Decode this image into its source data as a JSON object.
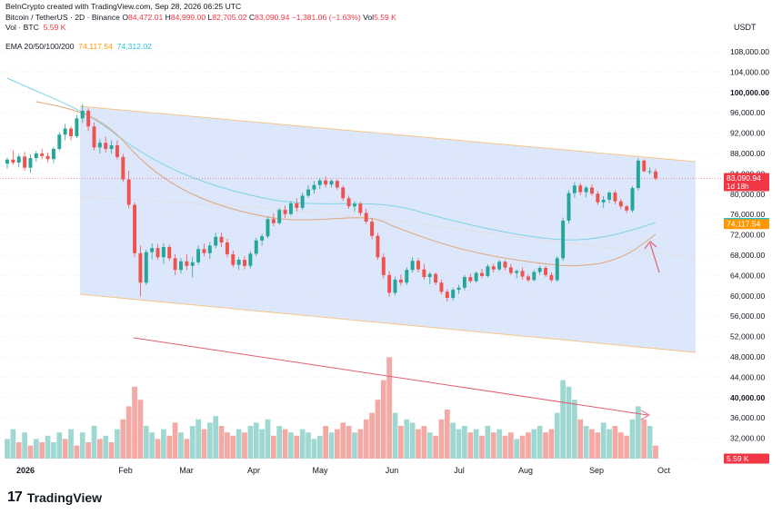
{
  "header": {
    "line1": "BeInCrypto created with TradingView.com, Sep 28, 2026 06:25 UTC",
    "symbol": "Bitcoin / TetherUS · 2D · Binance",
    "open_label": "O",
    "open": "84,472.01",
    "high_label": "H",
    "high": "84,999.00",
    "low_label": "L",
    "low": "82,705.02",
    "close_label": "C",
    "close": "83,090.94",
    "change": "−1,381.06 (−1.63%)",
    "vol_label": "Vol",
    "vol": "5.59 K",
    "vol_btc_label": "Vol · BTC",
    "vol_btc": "5.59 K",
    "ema_label": "EMA 20/50/100/200",
    "ema1": "74,117.54",
    "ema2": "74,312.02"
  },
  "axis": {
    "currency": "USDT"
  },
  "brand": "TradingView",
  "colors": {
    "up": "#26a69a",
    "down": "#ef5350",
    "channel_fill": "#dbe6fb",
    "channel_edge": "#f5c58a",
    "ema_orange": "#e0a77a",
    "ema_cyan": "#7fd3e8",
    "arrow": "#e06070"
  },
  "chart_data": {
    "type": "candlestick",
    "symbol": "Bitcoin / TetherUS",
    "interval": "2D",
    "exchange": "Binance",
    "y_axis_ticks": [
      108000,
      104000,
      100000,
      96000,
      92000,
      88000,
      84000,
      80000,
      76000,
      72000,
      68000,
      64000,
      60000,
      56000,
      52000,
      48000,
      44000,
      40000,
      36000,
      32000,
      28000
    ],
    "ylim": [
      25500,
      112000
    ],
    "x_axis_labels": [
      "2026",
      "Feb",
      "Mar",
      "Apr",
      "May",
      "Jun",
      "Jul",
      "Aug",
      "Sep",
      "Oct"
    ],
    "price_labels": [
      {
        "label": "83,090.94",
        "sublabel": "1d 18h",
        "value": 83090.94,
        "color": "#f23645"
      },
      {
        "label": "74,312.02",
        "value": 74312.02,
        "color": "#00bcd4"
      },
      {
        "label": "74,117.54",
        "value": 74117.54,
        "color": "#ff9800"
      },
      {
        "label": "5.59 K",
        "value": 28000,
        "color": "#f23645"
      }
    ],
    "candles": [
      [
        86000,
        87200,
        85000,
        86800
      ],
      [
        86800,
        88600,
        85800,
        86200
      ],
      [
        86200,
        87900,
        85300,
        87400
      ],
      [
        87400,
        88300,
        84600,
        85200
      ],
      [
        85200,
        87800,
        84200,
        87100
      ],
      [
        87100,
        88500,
        86400,
        88000
      ],
      [
        88000,
        88900,
        86900,
        87500
      ],
      [
        87500,
        88200,
        86300,
        86900
      ],
      [
        86900,
        89300,
        86100,
        88900
      ],
      [
        88900,
        92200,
        88500,
        91700
      ],
      [
        91700,
        93800,
        90600,
        92900
      ],
      [
        92900,
        93300,
        90600,
        91400
      ],
      [
        91400,
        95600,
        91000,
        94900
      ],
      [
        94900,
        97700,
        94000,
        96400
      ],
      [
        96400,
        96900,
        92400,
        93300
      ],
      [
        93300,
        94100,
        88600,
        89200
      ],
      [
        89200,
        90800,
        88000,
        90100
      ],
      [
        90100,
        91300,
        88200,
        88900
      ],
      [
        88900,
        90600,
        88000,
        89600
      ],
      [
        89600,
        90600,
        86800,
        87300
      ],
      [
        87300,
        87900,
        82400,
        82900
      ],
      [
        82900,
        84600,
        77200,
        77900
      ],
      [
        77900,
        78400,
        67600,
        68400
      ],
      [
        68400,
        69900,
        59900,
        62600
      ],
      [
        62600,
        69100,
        62100,
        68600
      ],
      [
        68600,
        70300,
        67200,
        69400
      ],
      [
        69400,
        70200,
        67100,
        67600
      ],
      [
        67600,
        70400,
        66300,
        69600
      ],
      [
        69600,
        70100,
        66900,
        67400
      ],
      [
        67400,
        68200,
        64100,
        65100
      ],
      [
        65100,
        67400,
        64400,
        66800
      ],
      [
        66800,
        68200,
        65100,
        65900
      ],
      [
        65900,
        67600,
        63600,
        66600
      ],
      [
        66600,
        69900,
        66100,
        69200
      ],
      [
        69200,
        70300,
        67800,
        68400
      ],
      [
        68400,
        70600,
        67300,
        69900
      ],
      [
        69900,
        72400,
        69300,
        71600
      ],
      [
        71600,
        72400,
        69600,
        70500
      ],
      [
        70500,
        71200,
        67600,
        68200
      ],
      [
        68200,
        68900,
        65600,
        66100
      ],
      [
        66100,
        67600,
        65100,
        67100
      ],
      [
        67100,
        67800,
        65200,
        65900
      ],
      [
        65900,
        68800,
        65400,
        68300
      ],
      [
        68300,
        71400,
        67800,
        70900
      ],
      [
        70900,
        72200,
        69900,
        71700
      ],
      [
        71700,
        75600,
        71300,
        75100
      ],
      [
        75100,
        76200,
        73700,
        74300
      ],
      [
        74300,
        77300,
        74000,
        76900
      ],
      [
        76900,
        77800,
        75300,
        76100
      ],
      [
        76100,
        78600,
        75800,
        78200
      ],
      [
        78200,
        79200,
        76600,
        77300
      ],
      [
        77300,
        80300,
        76900,
        79700
      ],
      [
        79700,
        81800,
        79300,
        80900
      ],
      [
        80900,
        82600,
        80100,
        81800
      ],
      [
        81800,
        83200,
        81000,
        82700
      ],
      [
        82700,
        83500,
        81300,
        81900
      ],
      [
        81900,
        82900,
        81300,
        82600
      ],
      [
        82600,
        82900,
        80800,
        81300
      ],
      [
        81300,
        81700,
        78700,
        79200
      ],
      [
        79200,
        79700,
        77100,
        77600
      ],
      [
        77600,
        78600,
        76600,
        78100
      ],
      [
        78100,
        78500,
        75700,
        76300
      ],
      [
        76300,
        77100,
        74100,
        74600
      ],
      [
        74600,
        75300,
        71100,
        71800
      ],
      [
        71800,
        72400,
        67100,
        67600
      ],
      [
        67600,
        68300,
        63400,
        64100
      ],
      [
        64100,
        64900,
        59800,
        60600
      ],
      [
        60600,
        63800,
        60100,
        63200
      ],
      [
        63200,
        64200,
        62000,
        62600
      ],
      [
        62600,
        65600,
        62100,
        65100
      ],
      [
        65100,
        67600,
        64600,
        66900
      ],
      [
        66900,
        67400,
        64600,
        65200
      ],
      [
        65200,
        66300,
        63200,
        63700
      ],
      [
        63700,
        64700,
        62300,
        64300
      ],
      [
        64300,
        64600,
        62100,
        62600
      ],
      [
        62600,
        63200,
        60300,
        60800
      ],
      [
        60800,
        61300,
        58900,
        59600
      ],
      [
        59600,
        61600,
        59100,
        61200
      ],
      [
        61200,
        62200,
        60400,
        61600
      ],
      [
        61600,
        64100,
        61100,
        63700
      ],
      [
        63700,
        64400,
        62500,
        62900
      ],
      [
        62900,
        64800,
        62600,
        64500
      ],
      [
        64500,
        65300,
        63500,
        63900
      ],
      [
        63900,
        66200,
        63600,
        65800
      ],
      [
        65800,
        66300,
        64600,
        65200
      ],
      [
        65200,
        67100,
        64900,
        66700
      ],
      [
        66700,
        67000,
        65000,
        65600
      ],
      [
        65600,
        66300,
        64100,
        64500
      ],
      [
        64500,
        65200,
        63500,
        64900
      ],
      [
        64900,
        65600,
        63200,
        63800
      ],
      [
        63800,
        64200,
        62700,
        63100
      ],
      [
        63100,
        65100,
        62900,
        64700
      ],
      [
        64700,
        65900,
        64100,
        65500
      ],
      [
        65500,
        65900,
        63700,
        64100
      ],
      [
        64100,
        64600,
        62700,
        63100
      ],
      [
        63100,
        67800,
        62800,
        67400
      ],
      [
        67400,
        75400,
        66900,
        74800
      ],
      [
        74800,
        80800,
        74200,
        80200
      ],
      [
        80200,
        82300,
        79300,
        81700
      ],
      [
        81700,
        82200,
        79800,
        80400
      ],
      [
        80400,
        81600,
        79400,
        81300
      ],
      [
        81300,
        81900,
        79700,
        80100
      ],
      [
        80100,
        80600,
        77900,
        78400
      ],
      [
        78400,
        79600,
        77300,
        78900
      ],
      [
        78900,
        80600,
        78200,
        80300
      ],
      [
        80300,
        80800,
        78000,
        78600
      ],
      [
        78600,
        79100,
        77100,
        77600
      ],
      [
        77600,
        77900,
        76300,
        76800
      ],
      [
        76800,
        81600,
        76400,
        81200
      ],
      [
        81200,
        87100,
        80700,
        86600
      ],
      [
        86600,
        86800,
        84300,
        84500
      ],
      [
        84500,
        85200,
        83900,
        84500
      ],
      [
        84472.01,
        84999,
        82705.02,
        83090.94
      ]
    ],
    "volume": [
      [
        6,
        "up"
      ],
      [
        9,
        "up"
      ],
      [
        5,
        "down"
      ],
      [
        8,
        "up"
      ],
      [
        4,
        "down"
      ],
      [
        6,
        "up"
      ],
      [
        5,
        "down"
      ],
      [
        7,
        "up"
      ],
      [
        5,
        "up"
      ],
      [
        8,
        "up"
      ],
      [
        6,
        "down"
      ],
      [
        9,
        "up"
      ],
      [
        4,
        "down"
      ],
      [
        8,
        "up"
      ],
      [
        5,
        "down"
      ],
      [
        10,
        "up"
      ],
      [
        6,
        "down"
      ],
      [
        7,
        "up"
      ],
      [
        5,
        "down"
      ],
      [
        9,
        "up"
      ],
      [
        12,
        "down"
      ],
      [
        16,
        "down"
      ],
      [
        22,
        "down"
      ],
      [
        18,
        "down"
      ],
      [
        10,
        "up"
      ],
      [
        8,
        "up"
      ],
      [
        6,
        "down"
      ],
      [
        9,
        "up"
      ],
      [
        7,
        "down"
      ],
      [
        11,
        "down"
      ],
      [
        8,
        "up"
      ],
      [
        6,
        "down"
      ],
      [
        10,
        "up"
      ],
      [
        12,
        "up"
      ],
      [
        9,
        "down"
      ],
      [
        11,
        "up"
      ],
      [
        13,
        "up"
      ],
      [
        10,
        "down"
      ],
      [
        8,
        "down"
      ],
      [
        7,
        "down"
      ],
      [
        9,
        "up"
      ],
      [
        8,
        "down"
      ],
      [
        10,
        "up"
      ],
      [
        11,
        "up"
      ],
      [
        9,
        "up"
      ],
      [
        12,
        "up"
      ],
      [
        7,
        "down"
      ],
      [
        10,
        "up"
      ],
      [
        9,
        "down"
      ],
      [
        8,
        "up"
      ],
      [
        7,
        "down"
      ],
      [
        9,
        "up"
      ],
      [
        8,
        "up"
      ],
      [
        6,
        "up"
      ],
      [
        7,
        "up"
      ],
      [
        10,
        "down"
      ],
      [
        8,
        "up"
      ],
      [
        9,
        "down"
      ],
      [
        11,
        "down"
      ],
      [
        10,
        "down"
      ],
      [
        8,
        "up"
      ],
      [
        9,
        "down"
      ],
      [
        12,
        "down"
      ],
      [
        14,
        "down"
      ],
      [
        18,
        "down"
      ],
      [
        24,
        "down"
      ],
      [
        31,
        "down"
      ],
      [
        14,
        "up"
      ],
      [
        10,
        "down"
      ],
      [
        12,
        "up"
      ],
      [
        11,
        "up"
      ],
      [
        9,
        "down"
      ],
      [
        10,
        "down"
      ],
      [
        8,
        "up"
      ],
      [
        7,
        "down"
      ],
      [
        12,
        "down"
      ],
      [
        15,
        "down"
      ],
      [
        11,
        "up"
      ],
      [
        9,
        "up"
      ],
      [
        10,
        "up"
      ],
      [
        8,
        "down"
      ],
      [
        9,
        "up"
      ],
      [
        7,
        "down"
      ],
      [
        10,
        "up"
      ],
      [
        8,
        "down"
      ],
      [
        9,
        "up"
      ],
      [
        7,
        "down"
      ],
      [
        8,
        "down"
      ],
      [
        6,
        "up"
      ],
      [
        7,
        "down"
      ],
      [
        8,
        "down"
      ],
      [
        9,
        "up"
      ],
      [
        10,
        "up"
      ],
      [
        8,
        "down"
      ],
      [
        9,
        "down"
      ],
      [
        14,
        "up"
      ],
      [
        24,
        "up"
      ],
      [
        22,
        "up"
      ],
      [
        18,
        "up"
      ],
      [
        12,
        "down"
      ],
      [
        10,
        "up"
      ],
      [
        9,
        "down"
      ],
      [
        8,
        "down"
      ],
      [
        11,
        "up"
      ],
      [
        9,
        "up"
      ],
      [
        10,
        "down"
      ],
      [
        8,
        "down"
      ],
      [
        7,
        "down"
      ],
      [
        12,
        "up"
      ],
      [
        16,
        "up"
      ],
      [
        12,
        "down"
      ],
      [
        10,
        "up"
      ],
      [
        4,
        "down"
      ]
    ]
  }
}
